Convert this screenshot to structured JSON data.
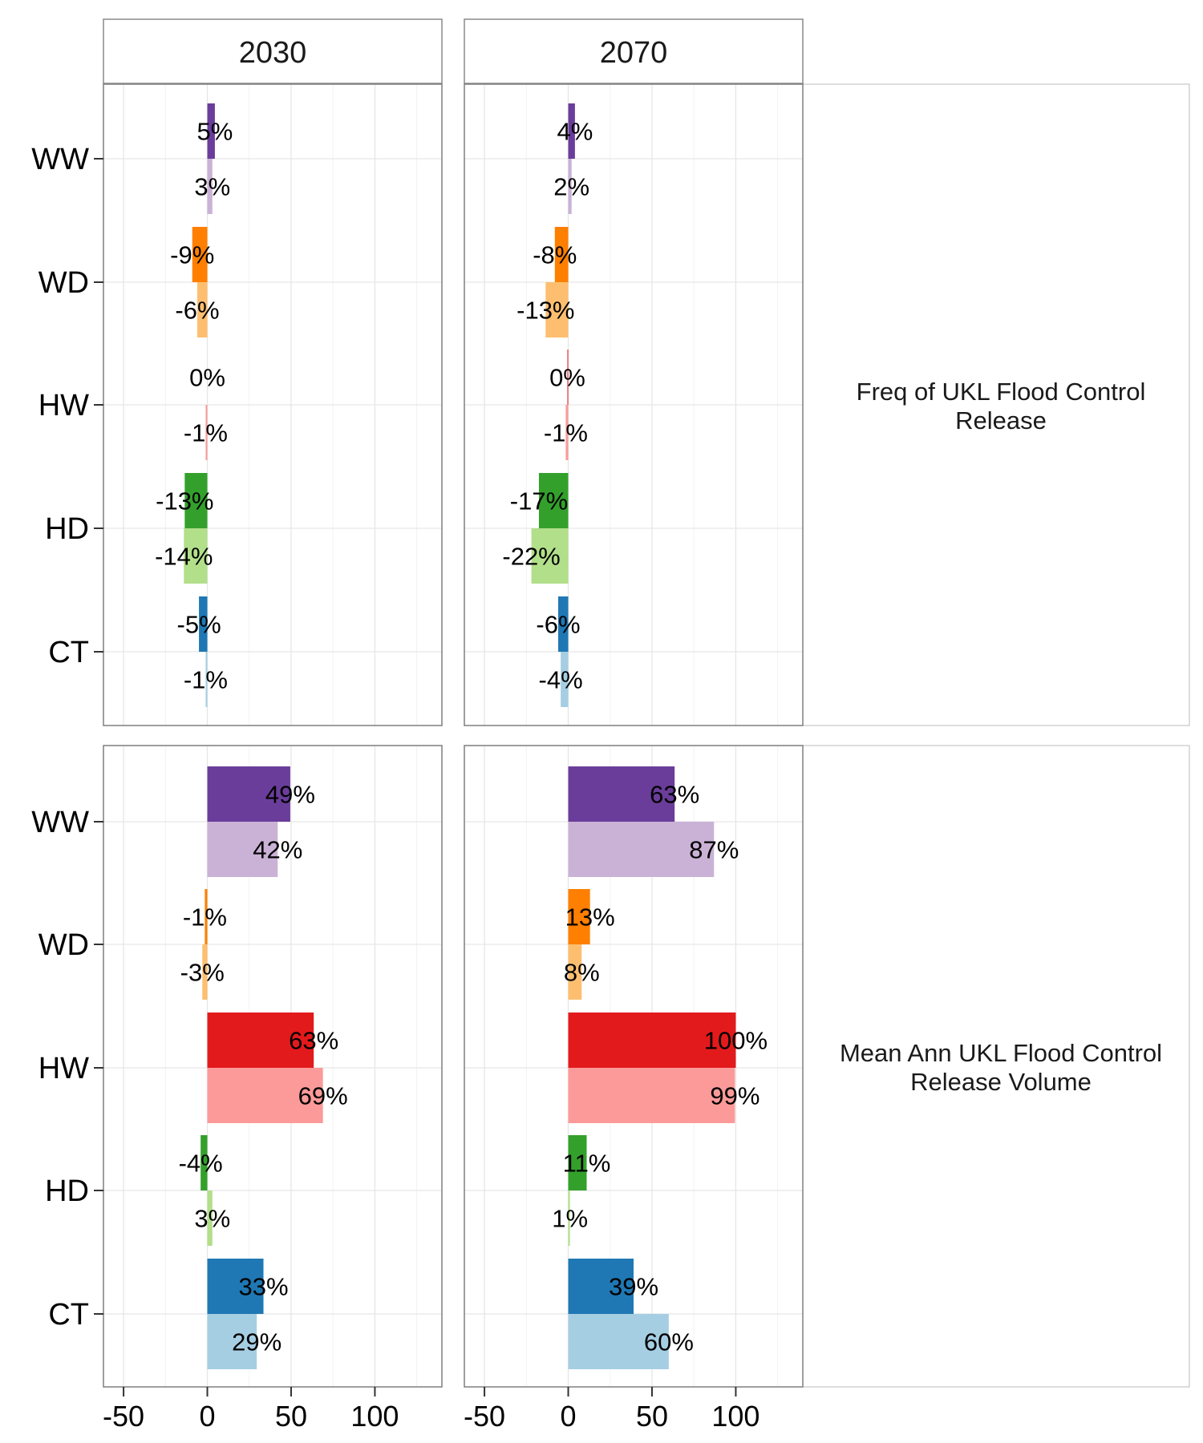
{
  "chart_data": {
    "type": "bar",
    "orientation": "horizontal",
    "categories": [
      "WW",
      "WD",
      "HW",
      "HD",
      "CT"
    ],
    "columns": [
      "2030",
      "2070"
    ],
    "rows": [
      "Freq of UKL Flood Control Release",
      "Mean Ann UKL Flood Control Release Volume"
    ],
    "xlim": [
      -62,
      140
    ],
    "xticks": [
      -50,
      0,
      50,
      100
    ],
    "xtick_labels": [
      "-50",
      "0",
      "50",
      "100"
    ],
    "grid": true,
    "label_suffix": "%",
    "colors": {
      "WW": [
        "#6a3d9a",
        "#cab2d6"
      ],
      "WD": [
        "#ff7f00",
        "#fdbf6f"
      ],
      "HW": [
        "#e31a1c",
        "#fb9a99"
      ],
      "HD": [
        "#33a02c",
        "#b2df8a"
      ],
      "CT": [
        "#1f78b4",
        "#a6cee3"
      ]
    },
    "panels": [
      {
        "row": 0,
        "col": 0,
        "values": {
          "WW": [
            5,
            3
          ],
          "WD": [
            -9,
            -6
          ],
          "HW": [
            0,
            -1
          ],
          "HD": [
            -13,
            -14
          ],
          "CT": [
            -5,
            -1
          ]
        },
        "bar_values": {
          "WW": [
            4.5,
            3
          ],
          "WD": [
            -9,
            -6
          ],
          "HW": [
            0,
            -1
          ],
          "HD": [
            -13.5,
            -14
          ],
          "CT": [
            -5,
            -1
          ]
        }
      },
      {
        "row": 0,
        "col": 1,
        "values": {
          "WW": [
            4,
            2
          ],
          "WD": [
            -8,
            -13
          ],
          "HW": [
            0,
            -1
          ],
          "HD": [
            -17,
            -22
          ],
          "CT": [
            -6,
            -4
          ]
        },
        "bar_values": {
          "WW": [
            4,
            2
          ],
          "WD": [
            -8,
            -13.5
          ],
          "HW": [
            -0.5,
            -1.5
          ],
          "HD": [
            -17.5,
            -22
          ],
          "CT": [
            -6,
            -4.5
          ]
        }
      },
      {
        "row": 1,
        "col": 0,
        "values": {
          "WW": [
            49,
            42
          ],
          "WD": [
            -1,
            -3
          ],
          "HW": [
            63,
            69
          ],
          "HD": [
            -4,
            3
          ],
          "CT": [
            33,
            29
          ]
        },
        "bar_values": {
          "WW": [
            49.5,
            42
          ],
          "WD": [
            -1.5,
            -3
          ],
          "HW": [
            63.5,
            69
          ],
          "HD": [
            -4,
            3
          ],
          "CT": [
            33.5,
            29.5
          ]
        }
      },
      {
        "row": 1,
        "col": 1,
        "values": {
          "WW": [
            63,
            87
          ],
          "WD": [
            13,
            8
          ],
          "HW": [
            100,
            99
          ],
          "HD": [
            11,
            1
          ],
          "CT": [
            39,
            60
          ]
        },
        "bar_values": {
          "WW": [
            63.5,
            87
          ],
          "WD": [
            13,
            8
          ],
          "HW": [
            100,
            99.5
          ],
          "HD": [
            11,
            1
          ],
          "CT": [
            39,
            60
          ]
        }
      }
    ]
  }
}
